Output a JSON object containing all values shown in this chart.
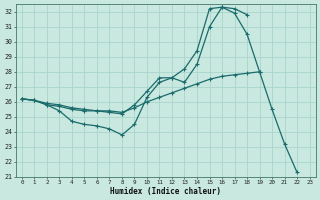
{
  "title": "",
  "xlabel": "Humidex (Indice chaleur)",
  "background_color": "#c8e8e0",
  "grid_color": "#aad4cc",
  "line_color": "#1a6b6b",
  "ylim": [
    21,
    32.5
  ],
  "xlim": [
    -0.5,
    23.5
  ],
  "yticks": [
    21,
    22,
    23,
    24,
    25,
    26,
    27,
    28,
    29,
    30,
    31,
    32
  ],
  "xticks": [
    0,
    1,
    2,
    3,
    4,
    5,
    6,
    7,
    8,
    9,
    10,
    11,
    12,
    13,
    14,
    15,
    16,
    17,
    18,
    19,
    20,
    21,
    22,
    23
  ],
  "series": [
    {
      "x": [
        0,
        1,
        2,
        3,
        4,
        5,
        6,
        7,
        8,
        9,
        10,
        11,
        12,
        13,
        14,
        15,
        16,
        17,
        18,
        19,
        20,
        21,
        22
      ],
      "y": [
        26.2,
        26.1,
        25.8,
        25.4,
        24.7,
        24.5,
        24.4,
        24.2,
        23.8,
        24.5,
        26.3,
        27.3,
        27.6,
        28.2,
        29.4,
        32.2,
        32.3,
        31.9,
        30.5,
        28.0,
        25.5,
        23.2,
        21.3
      ]
    },
    {
      "x": [
        0,
        1,
        2,
        3,
        4,
        5,
        6,
        7,
        8,
        9,
        10,
        11,
        12,
        13,
        14,
        15,
        16,
        17,
        18,
        19
      ],
      "y": [
        26.2,
        26.1,
        25.9,
        25.8,
        25.6,
        25.5,
        25.4,
        25.4,
        25.3,
        25.6,
        26.0,
        26.3,
        26.6,
        26.9,
        27.2,
        27.5,
        27.7,
        27.8,
        27.9,
        28.0
      ]
    },
    {
      "x": [
        0,
        1,
        2,
        3,
        4,
        5,
        6,
        7,
        8,
        9,
        10,
        11,
        12,
        13,
        14,
        15,
        16,
        17,
        18
      ],
      "y": [
        26.2,
        26.1,
        25.8,
        25.7,
        25.5,
        25.4,
        25.4,
        25.3,
        25.2,
        25.8,
        26.7,
        27.6,
        27.6,
        27.3,
        28.5,
        31.0,
        32.3,
        32.2,
        31.8
      ]
    }
  ]
}
